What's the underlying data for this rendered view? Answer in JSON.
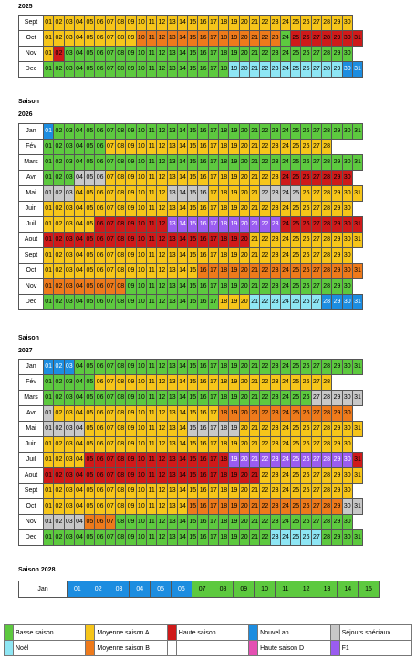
{
  "colors": {
    "bs": "#5dc93f",
    "ma": "#f6c51a",
    "mb": "#ee7a1b",
    "hs": "#cf1a1a",
    "na": "#1c8de0",
    "ss": "#c8c8c8",
    "no": "#8ee6f4",
    "hd": "#e44fb2",
    "f1": "#9a5cf0"
  },
  "sections": [
    {
      "title": "2025",
      "months": [
        {
          "name": "Sept",
          "days": 30,
          "ranges": [
            [
              1,
              30,
              "ma"
            ]
          ]
        },
        {
          "name": "Oct",
          "days": 31,
          "ranges": [
            [
              1,
              9,
              "ma"
            ],
            [
              10,
              23,
              "mb"
            ],
            [
              24,
              24,
              "bs"
            ],
            [
              25,
              31,
              "hs"
            ]
          ]
        },
        {
          "name": "Nov",
          "days": 30,
          "ranges": [
            [
              1,
              1,
              "ma"
            ],
            [
              2,
              2,
              "hs"
            ],
            [
              3,
              30,
              "bs"
            ]
          ]
        },
        {
          "name": "Dec",
          "days": 31,
          "ranges": [
            [
              1,
              18,
              "bs"
            ],
            [
              19,
              21,
              "no"
            ],
            [
              22,
              29,
              "no"
            ],
            [
              30,
              31,
              "na"
            ]
          ]
        }
      ]
    },
    {
      "title": "2026",
      "subtitle": "Saison",
      "months": [
        {
          "name": "Jan",
          "days": 31,
          "ranges": [
            [
              1,
              1,
              "na"
            ],
            [
              2,
              31,
              "bs"
            ]
          ]
        },
        {
          "name": "Fév",
          "days": 28,
          "ranges": [
            [
              1,
              6,
              "bs"
            ],
            [
              7,
              28,
              "ma"
            ]
          ]
        },
        {
          "name": "Mars",
          "days": 31,
          "ranges": [
            [
              1,
              31,
              "bs"
            ]
          ]
        },
        {
          "name": "Avr",
          "days": 30,
          "ranges": [
            [
              1,
              3,
              "bs"
            ],
            [
              4,
              6,
              "ss"
            ],
            [
              7,
              23,
              "ma"
            ],
            [
              24,
              30,
              "hs"
            ]
          ]
        },
        {
          "name": "Mai",
          "days": 31,
          "ranges": [
            [
              1,
              3,
              "ss"
            ],
            [
              4,
              12,
              "ma"
            ],
            [
              13,
              16,
              "ss"
            ],
            [
              17,
              21,
              "ma"
            ],
            [
              22,
              25,
              "ss"
            ],
            [
              26,
              31,
              "ma"
            ]
          ]
        },
        {
          "name": "Juin",
          "days": 30,
          "ranges": [
            [
              1,
              30,
              "ma"
            ]
          ]
        },
        {
          "name": "Juil",
          "days": 31,
          "ranges": [
            [
              1,
              5,
              "ma"
            ],
            [
              6,
              12,
              "hs"
            ],
            [
              13,
              23,
              "f1"
            ],
            [
              24,
              31,
              "hs"
            ]
          ]
        },
        {
          "name": "Aout",
          "days": 31,
          "ranges": [
            [
              1,
              20,
              "hs"
            ],
            [
              21,
              31,
              "ma"
            ]
          ]
        },
        {
          "name": "Sept",
          "days": 30,
          "ranges": [
            [
              1,
              30,
              "ma"
            ]
          ]
        },
        {
          "name": "Oct",
          "days": 31,
          "ranges": [
            [
              1,
              15,
              "ma"
            ],
            [
              16,
              31,
              "mb"
            ]
          ]
        },
        {
          "name": "Nov",
          "days": 30,
          "ranges": [
            [
              1,
              8,
              "mb"
            ],
            [
              9,
              30,
              "bs"
            ]
          ]
        },
        {
          "name": "Dec",
          "days": 31,
          "ranges": [
            [
              1,
              17,
              "bs"
            ],
            [
              18,
              20,
              "ma"
            ],
            [
              21,
              27,
              "no"
            ],
            [
              28,
              31,
              "na"
            ]
          ]
        }
      ]
    },
    {
      "title": "2027",
      "subtitle": "Saison",
      "months": [
        {
          "name": "Jan",
          "days": 31,
          "ranges": [
            [
              1,
              3,
              "na"
            ],
            [
              4,
              31,
              "bs"
            ]
          ]
        },
        {
          "name": "Fév",
          "days": 28,
          "ranges": [
            [
              1,
              5,
              "bs"
            ],
            [
              6,
              28,
              "ma"
            ]
          ]
        },
        {
          "name": "Mars",
          "days": 31,
          "ranges": [
            [
              1,
              26,
              "bs"
            ],
            [
              27,
              31,
              "ss"
            ]
          ]
        },
        {
          "name": "Avr",
          "days": 30,
          "ranges": [
            [
              1,
              1,
              "ss"
            ],
            [
              2,
              17,
              "ma"
            ],
            [
              18,
              30,
              "mb"
            ]
          ]
        },
        {
          "name": "Mai",
          "days": 31,
          "ranges": [
            [
              1,
              4,
              "ss"
            ],
            [
              5,
              14,
              "ma"
            ],
            [
              15,
              19,
              "ss"
            ],
            [
              20,
              31,
              "ma"
            ]
          ]
        },
        {
          "name": "Juin",
          "days": 30,
          "ranges": [
            [
              1,
              30,
              "ma"
            ]
          ]
        },
        {
          "name": "Juil",
          "days": 31,
          "ranges": [
            [
              1,
              4,
              "ma"
            ],
            [
              5,
              18,
              "hs"
            ],
            [
              19,
              30,
              "f1"
            ],
            [
              31,
              31,
              "hs"
            ]
          ]
        },
        {
          "name": "Aout",
          "days": 31,
          "ranges": [
            [
              1,
              21,
              "hs"
            ],
            [
              22,
              31,
              "ma"
            ]
          ]
        },
        {
          "name": "Sept",
          "days": 30,
          "ranges": [
            [
              1,
              30,
              "ma"
            ]
          ]
        },
        {
          "name": "Oct",
          "days": 31,
          "ranges": [
            [
              1,
              14,
              "ma"
            ],
            [
              15,
              29,
              "mb"
            ],
            [
              30,
              31,
              "ss"
            ]
          ]
        },
        {
          "name": "Nov",
          "days": 30,
          "ranges": [
            [
              1,
              4,
              "ss"
            ],
            [
              5,
              7,
              "mb"
            ],
            [
              8,
              30,
              "bs"
            ]
          ]
        },
        {
          "name": "Dec",
          "days": 31,
          "ranges": [
            [
              1,
              22,
              "bs"
            ],
            [
              23,
              27,
              "no"
            ],
            [
              28,
              31,
              "bs"
            ]
          ]
        }
      ]
    }
  ],
  "season2028": {
    "title": "Saison 2028",
    "month": "Jan",
    "days": [
      "01",
      "02",
      "03",
      "04",
      "05",
      "06",
      "07",
      "08",
      "09",
      "10",
      "11",
      "12",
      "13",
      "14",
      "15"
    ],
    "ranges": [
      [
        1,
        6,
        "na"
      ],
      [
        7,
        15,
        "bs"
      ]
    ]
  },
  "legend": [
    {
      "label": "Basse saison",
      "color": "bs"
    },
    {
      "label": "Moyenne saison A",
      "color": "ma"
    },
    {
      "label": "Haute saison",
      "color": "hs"
    },
    {
      "label": "Nouvel an",
      "color": "na"
    },
    {
      "label": "Séjours spéciaux",
      "color": "ss"
    },
    {
      "label": "Noël",
      "color": "no"
    },
    {
      "label": "Moyenne saison B",
      "color": "mb"
    },
    {
      "label": "",
      "color": ""
    },
    {
      "label": "Haute saison D",
      "color": "hd"
    },
    {
      "label": "F1",
      "color": "f1"
    }
  ]
}
